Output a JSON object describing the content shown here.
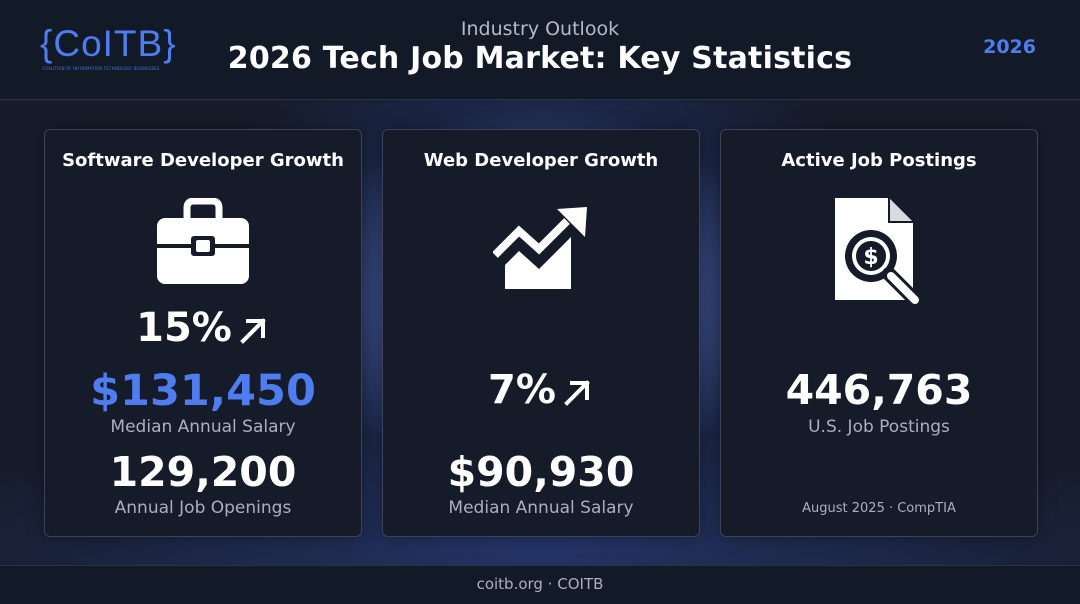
{
  "header": {
    "logo": "{CoITB}",
    "logo_tagline": "COALITION OF INFORMATION TECHNOLOGY BUSINESSES",
    "kicker": "Industry Outlook",
    "title": "2026 Tech Job Market: Key Statistics",
    "year": "2026"
  },
  "cards": [
    {
      "title": "Software Developer Growth",
      "icon": "briefcase-icon",
      "growth": "15%",
      "salary": "$131,450",
      "salary_label": "Median Annual Salary",
      "openings": "129,200",
      "openings_label": "Annual Job Openings"
    },
    {
      "title": "Web Developer Growth",
      "icon": "trend-chart-icon",
      "growth": "7%",
      "salary": "$90,930",
      "salary_label": "Median Annual Salary"
    },
    {
      "title": "Active Job Postings",
      "icon": "document-search-dollar-icon",
      "postings": "446,763",
      "postings_label": "U.S. Job Postings",
      "source": "August 2025 · CompTIA"
    }
  ],
  "footer": {
    "text": "coitb.org · COITB"
  },
  "colors": {
    "accent": "#4f7df0",
    "background": "#161c2b",
    "card": "#151b29"
  }
}
